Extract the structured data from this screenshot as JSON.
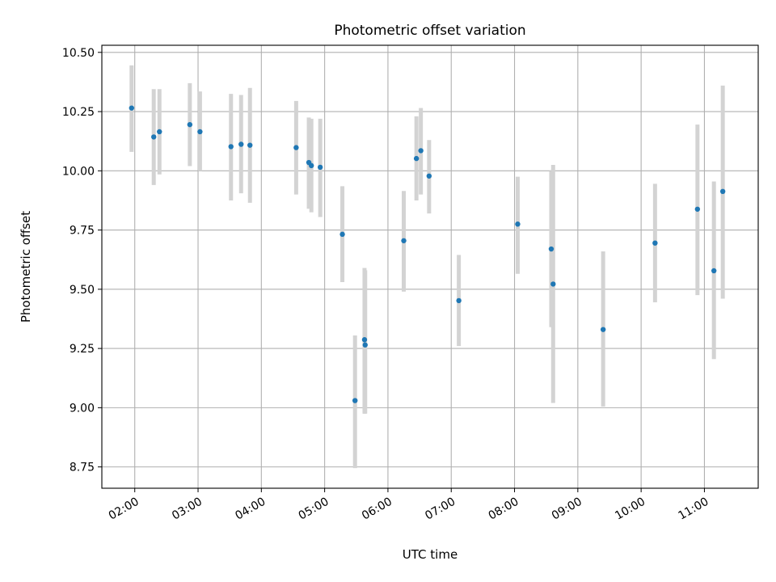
{
  "chart_data": {
    "type": "scatter",
    "title": "Photometric offset variation",
    "xlabel": "UTC time",
    "ylabel": "Photometric offset",
    "x_unit": "hours UTC",
    "xlim": [
      1.48,
      11.85
    ],
    "ylim": [
      8.66,
      10.53
    ],
    "grid": true,
    "legend": "none",
    "marker_color": "#1f77b4",
    "errorbar_color": "#d3d3d3",
    "x_ticks": [
      2,
      3,
      4,
      5,
      6,
      7,
      8,
      9,
      10,
      11
    ],
    "x_tick_labels": [
      "02:00",
      "03:00",
      "04:00",
      "05:00",
      "06:00",
      "07:00",
      "08:00",
      "09:00",
      "10:00",
      "11:00"
    ],
    "y_ticks": [
      8.75,
      9.0,
      9.25,
      9.5,
      9.75,
      10.0,
      10.25,
      10.5
    ],
    "y_tick_labels": [
      "8.75",
      "9.00",
      "9.25",
      "9.50",
      "9.75",
      "10.00",
      "10.25",
      "10.50"
    ],
    "points": [
      {
        "x": 1.95,
        "y": 10.265,
        "low": 10.08,
        "high": 10.445
      },
      {
        "x": 2.3,
        "y": 10.143,
        "low": 9.94,
        "high": 10.345
      },
      {
        "x": 2.39,
        "y": 10.165,
        "low": 9.985,
        "high": 10.345
      },
      {
        "x": 2.87,
        "y": 10.195,
        "low": 10.02,
        "high": 10.37
      },
      {
        "x": 3.03,
        "y": 10.165,
        "low": 10.0,
        "high": 10.335
      },
      {
        "x": 3.52,
        "y": 10.102,
        "low": 9.875,
        "high": 10.325
      },
      {
        "x": 3.68,
        "y": 10.112,
        "low": 9.905,
        "high": 10.32
      },
      {
        "x": 3.82,
        "y": 10.108,
        "low": 9.865,
        "high": 10.35
      },
      {
        "x": 4.55,
        "y": 10.098,
        "low": 9.9,
        "high": 10.295
      },
      {
        "x": 4.75,
        "y": 10.035,
        "low": 9.84,
        "high": 10.225
      },
      {
        "x": 4.79,
        "y": 10.022,
        "low": 9.825,
        "high": 10.22
      },
      {
        "x": 4.93,
        "y": 10.015,
        "low": 9.805,
        "high": 10.22
      },
      {
        "x": 5.28,
        "y": 9.732,
        "low": 9.53,
        "high": 9.935
      },
      {
        "x": 5.48,
        "y": 9.03,
        "low": 8.745,
        "high": 9.305
      },
      {
        "x": 5.63,
        "y": 9.287,
        "low": 8.975,
        "high": 9.59
      },
      {
        "x": 5.64,
        "y": 9.265,
        "low": 8.975,
        "high": 9.58
      },
      {
        "x": 6.25,
        "y": 9.705,
        "low": 9.49,
        "high": 9.915
      },
      {
        "x": 6.45,
        "y": 10.052,
        "low": 9.875,
        "high": 10.23
      },
      {
        "x": 6.52,
        "y": 10.085,
        "low": 9.9,
        "high": 10.265
      },
      {
        "x": 6.65,
        "y": 9.978,
        "low": 9.82,
        "high": 10.13
      },
      {
        "x": 7.12,
        "y": 9.452,
        "low": 9.26,
        "high": 9.645
      },
      {
        "x": 8.05,
        "y": 9.775,
        "low": 9.565,
        "high": 9.975
      },
      {
        "x": 8.58,
        "y": 9.67,
        "low": 9.34,
        "high": 10.0
      },
      {
        "x": 8.61,
        "y": 9.522,
        "low": 9.02,
        "high": 10.025
      },
      {
        "x": 9.4,
        "y": 9.33,
        "low": 9.005,
        "high": 9.66
      },
      {
        "x": 10.22,
        "y": 9.695,
        "low": 9.445,
        "high": 9.945
      },
      {
        "x": 10.89,
        "y": 9.838,
        "low": 9.475,
        "high": 10.195
      },
      {
        "x": 11.15,
        "y": 9.578,
        "low": 9.205,
        "high": 9.955
      },
      {
        "x": 11.29,
        "y": 9.913,
        "low": 9.46,
        "high": 10.36
      }
    ]
  }
}
